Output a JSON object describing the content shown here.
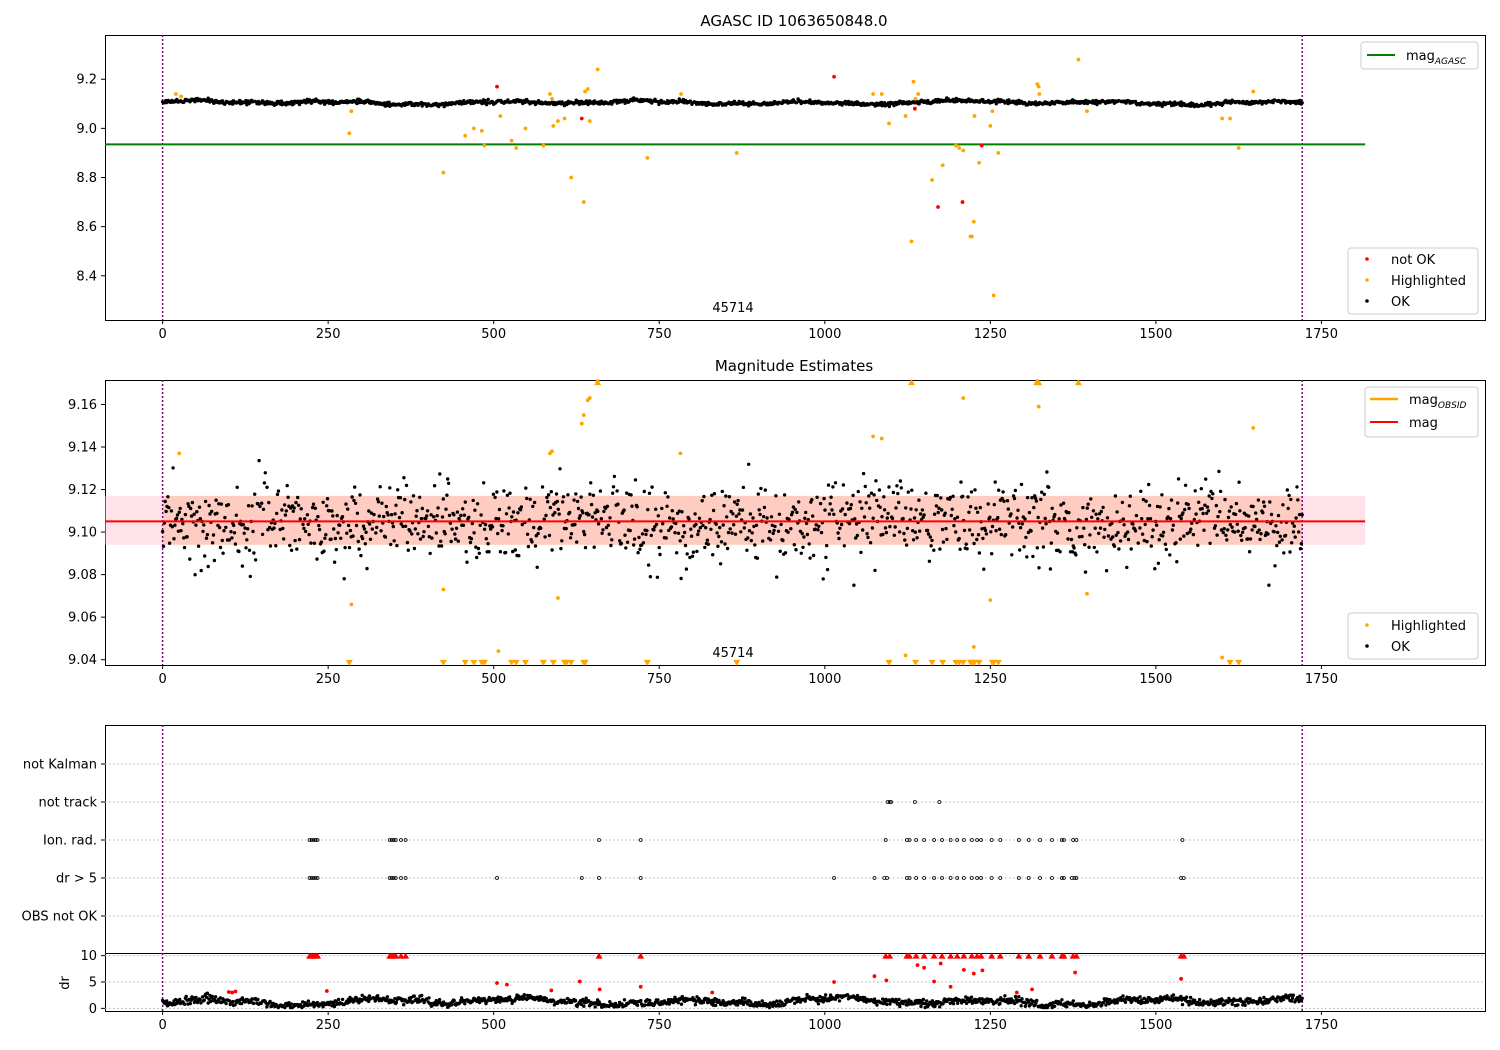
{
  "chart_data": [
    {
      "id": "agasc-panel",
      "type": "scatter",
      "title": "AGASC ID 1063650848.0",
      "annotation": "45714",
      "xlim": [
        -87,
        1997
      ],
      "ylim": [
        8.22,
        9.38
      ],
      "xticks": [
        0,
        250,
        500,
        750,
        1000,
        1250,
        1500,
        1750
      ],
      "yticks": [
        8.4,
        8.6,
        8.8,
        9.0,
        9.2
      ],
      "grid": false,
      "legend_top": {
        "placement": "upper right",
        "entries": [
          {
            "label": "mag",
            "subscript": "AGASC",
            "color": "#008000"
          }
        ]
      },
      "legend_bottom": {
        "placement": "lower right",
        "entries": [
          {
            "label": "not OK",
            "color": "#ff0000"
          },
          {
            "label": "Highlighted",
            "color": "#ffa500"
          },
          {
            "label": "OK",
            "color": "#000000"
          }
        ]
      },
      "observation_bounds": [
        0,
        1721
      ],
      "mag_agasc": {
        "value": 8.935,
        "x_range": [
          -87,
          1816
        ]
      },
      "ok_trend": {
        "x_range": [
          0,
          1721
        ],
        "center": 9.105,
        "wobble": 0.009,
        "jitter": 0.004,
        "count": 1450
      },
      "series": [
        {
          "name": "not OK",
          "color": "#ff0000",
          "x": [
            505,
            633,
            1014,
            1136,
            1171,
            1208,
            1237
          ],
          "y": [
            9.17,
            9.04,
            9.21,
            9.08,
            8.68,
            8.7,
            8.93
          ]
        },
        {
          "name": "Highlighted",
          "color": "#ffa500",
          "x": [
            20,
            28,
            282,
            285,
            424,
            457,
            470,
            482,
            486,
            510,
            527,
            534,
            548,
            575,
            585,
            588,
            590,
            597,
            607,
            617,
            636,
            638,
            642,
            645,
            657,
            732,
            783,
            867,
            1073,
            1086,
            1097,
            1122,
            1131,
            1134,
            1137,
            1141,
            1162,
            1178,
            1198,
            1203,
            1209,
            1220,
            1222,
            1225,
            1226,
            1233,
            1250,
            1253,
            1255,
            1262,
            1321,
            1323,
            1324,
            1383,
            1396,
            1600,
            1612,
            1625,
            1647
          ],
          "y": [
            9.14,
            9.13,
            8.98,
            9.07,
            8.82,
            8.97,
            9.0,
            8.99,
            8.93,
            9.05,
            8.95,
            8.92,
            9.0,
            8.93,
            9.14,
            9.12,
            9.01,
            9.03,
            9.04,
            8.8,
            8.7,
            9.15,
            9.16,
            9.03,
            9.24,
            8.88,
            9.14,
            8.9,
            9.14,
            9.14,
            9.02,
            9.05,
            8.54,
            9.19,
            9.12,
            9.14,
            8.79,
            8.85,
            8.93,
            8.92,
            8.91,
            8.56,
            8.56,
            8.62,
            9.05,
            8.86,
            9.01,
            9.07,
            8.32,
            8.9,
            9.18,
            9.17,
            9.14,
            9.28,
            9.07,
            9.04,
            9.04,
            8.92,
            9.15
          ]
        }
      ]
    },
    {
      "id": "mag-panel",
      "type": "scatter",
      "title": "Magnitude Estimates",
      "annotation": "45714",
      "xlim": [
        -87,
        1997
      ],
      "ylim": [
        9.0375,
        9.1715
      ],
      "xticks": [
        0,
        250,
        500,
        750,
        1000,
        1250,
        1500,
        1750
      ],
      "yticks": [
        9.04,
        9.06,
        9.08,
        9.1,
        9.12,
        9.14,
        9.16
      ],
      "grid": false,
      "legend_top": {
        "placement": "upper right",
        "entries": [
          {
            "label": "mag",
            "subscript": "OBSID",
            "color": "#ffa500"
          },
          {
            "label": "mag",
            "subscript": "",
            "color": "#ff0000"
          }
        ]
      },
      "legend_bottom": {
        "placement": "lower right",
        "entries": [
          {
            "label": "Highlighted",
            "color": "#ffa500"
          },
          {
            "label": "OK",
            "color": "#000000"
          }
        ]
      },
      "observation_bounds": [
        0,
        1721
      ],
      "mag_line": {
        "value": 9.105,
        "x_range": [
          -87,
          1816
        ]
      },
      "mag_band": {
        "lower": 9.094,
        "upper": 9.117,
        "x_range": [
          -87,
          1816
        ]
      },
      "ok_trend": {
        "x_range": [
          0,
          1721
        ],
        "center": 9.105,
        "wobble": 0.004,
        "jitter": 0.009,
        "count": 1300
      },
      "series": [
        {
          "name": "Highlighted",
          "color": "#ffa500",
          "x": [
            25,
            285,
            424,
            507,
            585,
            588,
            597,
            633,
            636,
            642,
            645,
            657,
            782,
            1073,
            1086,
            1122,
            1209,
            1225,
            1250,
            1321,
            1323,
            1396,
            1600,
            1647
          ],
          "y": [
            9.137,
            9.066,
            9.073,
            9.044,
            9.137,
            9.138,
            9.069,
            9.151,
            9.155,
            9.162,
            9.163,
            9.171,
            9.137,
            9.145,
            9.144,
            9.042,
            9.163,
            9.046,
            9.068,
            9.171,
            9.159,
            9.071,
            9.041,
            9.149
          ]
        },
        {
          "name": "Highlighted (off-scale)",
          "color": "#ffa500",
          "marker": "triangle-down",
          "x": [
            282,
            424,
            457,
            470,
            482,
            486,
            527,
            534,
            548,
            575,
            590,
            607,
            610,
            617,
            636,
            638,
            732,
            867,
            1097,
            1137,
            1162,
            1178,
            1198,
            1203,
            1209,
            1220,
            1222,
            1225,
            1226,
            1233,
            1253,
            1255,
            1262,
            1612,
            1625
          ],
          "y": [
            9.0385,
            9.0385,
            9.0385,
            9.0385,
            9.0385,
            9.0385,
            9.0385,
            9.0385,
            9.0385,
            9.0385,
            9.0385,
            9.0385,
            9.0385,
            9.0385,
            9.0385,
            9.0385,
            9.0385,
            9.0385,
            9.0385,
            9.0385,
            9.0385,
            9.0385,
            9.0385,
            9.0385,
            9.0385,
            9.0385,
            9.0385,
            9.0385,
            9.0385,
            9.0385,
            9.0385,
            9.0385,
            9.0385,
            9.0385,
            9.0385
          ]
        },
        {
          "name": "Highlighted (off-scale high)",
          "color": "#ffa500",
          "marker": "triangle-up",
          "x": [
            657,
            1131,
            1320,
            1323,
            1383
          ],
          "y": [
            9.1705,
            9.1705,
            9.1705,
            9.1705,
            9.1705
          ]
        }
      ]
    },
    {
      "id": "flags-panel",
      "type": "scatter",
      "xlim": [
        -87,
        1997
      ],
      "categories": [
        "OBS not OK",
        "dr > 5",
        "Ion. rad.",
        "not track",
        "not Kalman"
      ],
      "grid": "horizontal dotted",
      "observation_bounds": [
        0,
        1721
      ],
      "series": [
        {
          "name": "not track",
          "color": "#000000",
          "x": [
            1095,
            1098,
            1100,
            1136,
            1173
          ]
        },
        {
          "name": "Ion. rad.",
          "color": "#000000",
          "x": [
            222,
            225,
            228,
            231,
            234,
            343,
            346,
            349,
            352,
            360,
            367,
            659,
            722,
            1092,
            1124,
            1128,
            1138,
            1150,
            1165,
            1177,
            1190,
            1200,
            1210,
            1222,
            1230,
            1236,
            1252,
            1265,
            1293,
            1308,
            1325,
            1343,
            1358,
            1361,
            1375,
            1380,
            1540
          ]
        },
        {
          "name": "dr > 5",
          "color": "#000000",
          "x": [
            222,
            225,
            228,
            231,
            234,
            343,
            346,
            349,
            352,
            360,
            367,
            505,
            633,
            659,
            722,
            1014,
            1075,
            1090,
            1094,
            1124,
            1128,
            1138,
            1150,
            1165,
            1177,
            1190,
            1200,
            1210,
            1222,
            1230,
            1236,
            1252,
            1265,
            1293,
            1308,
            1325,
            1343,
            1358,
            1361,
            1373,
            1377,
            1380,
            1538,
            1542
          ]
        }
      ]
    },
    {
      "id": "dr-panel",
      "type": "scatter",
      "ylabel": "dr",
      "xlim": [
        -87,
        1997
      ],
      "ylim": [
        -0.5,
        10.5
      ],
      "xticks": [
        0,
        250,
        500,
        750,
        1000,
        1250,
        1500,
        1750
      ],
      "yticks": [
        0,
        5,
        10
      ],
      "grid": "horizontal dotted",
      "observation_bounds": [
        0,
        1721
      ],
      "ok_trend": {
        "x_range": [
          0,
          1721
        ],
        "center": 1.3,
        "wobble": 0.8,
        "jitter": 0.35,
        "count": 1400
      },
      "series": [
        {
          "name": "dr >= 10",
          "color": "#ff0000",
          "marker": "triangle-up",
          "x": [
            222,
            225,
            228,
            231,
            234,
            343,
            346,
            349,
            352,
            360,
            367,
            659,
            722,
            1092,
            1098,
            1124,
            1128,
            1138,
            1150,
            1165,
            1177,
            1190,
            1200,
            1210,
            1222,
            1230,
            1236,
            1252,
            1265,
            1293,
            1308,
            1325,
            1343,
            1358,
            1361,
            1375,
            1380,
            1538,
            1542
          ],
          "y": [
            10,
            10,
            10,
            10,
            10,
            10,
            10,
            10,
            10,
            10,
            10,
            10,
            10,
            10,
            10,
            10,
            10,
            10,
            10,
            10,
            10,
            10,
            10,
            10,
            10,
            10,
            10,
            10,
            10,
            10,
            10,
            10,
            10,
            10,
            10,
            10,
            10,
            10,
            10
          ]
        },
        {
          "name": "not OK",
          "color": "#ff0000",
          "x": [
            100,
            105,
            110,
            248,
            505,
            520,
            587,
            630,
            660,
            722,
            830,
            1014,
            1075,
            1093,
            1140,
            1150,
            1165,
            1175,
            1190,
            1210,
            1225,
            1238,
            1290,
            1313,
            1378,
            1538
          ],
          "y": [
            3.1,
            3.0,
            3.2,
            3.3,
            4.8,
            4.5,
            3.4,
            5.1,
            3.6,
            4.1,
            3.0,
            5.0,
            6.1,
            5.3,
            8.2,
            7.7,
            5.1,
            8.5,
            4.1,
            7.3,
            6.6,
            7.2,
            3.0,
            3.6,
            6.8,
            5.6
          ]
        }
      ]
    }
  ]
}
